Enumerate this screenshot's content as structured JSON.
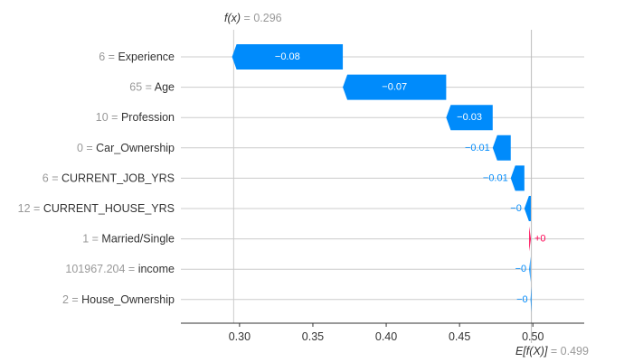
{
  "chart_data": {
    "type": "waterfall",
    "title": "",
    "xlabel": "",
    "ylabel": "",
    "xlim": [
      0.26,
      0.535
    ],
    "x_ticks": [
      0.3,
      0.35,
      0.4,
      0.45,
      0.5
    ],
    "x_tick_labels": [
      "0.30",
      "0.35",
      "0.40",
      "0.45",
      "0.50"
    ],
    "fx": {
      "label": "f(x)",
      "value": "0.296",
      "x": 0.296
    },
    "base": {
      "label": "E[f(X)]",
      "value": "0.499",
      "x": 0.499
    },
    "features": [
      {
        "value": "6",
        "name": "Experience",
        "shap": -0.0755,
        "label": "−0.08"
      },
      {
        "value": "65",
        "name": "Age",
        "shap": -0.0705,
        "label": "−0.07"
      },
      {
        "value": "10",
        "name": "Profession",
        "shap": -0.0317,
        "label": "−0.03"
      },
      {
        "value": "0",
        "name": "Car_Ownership",
        "shap": -0.0123,
        "label": "−0.01"
      },
      {
        "value": "6",
        "name": "CURRENT_JOB_YRS",
        "shap": -0.0093,
        "label": "−0.01"
      },
      {
        "value": "12",
        "name": "CURRENT_HOUSE_YRS",
        "shap": -0.0044,
        "label": "−0"
      },
      {
        "value": "1",
        "name": "Married/Single",
        "shap": 0.0011,
        "label": "+0"
      },
      {
        "value": "101967.204",
        "name": "income",
        "shap": -0.0009,
        "label": "−0"
      },
      {
        "value": "2",
        "name": "House_Ownership",
        "shap": -0.0006,
        "label": "−0"
      }
    ],
    "colors": {
      "negative": "#008bfb",
      "positive": "#ff0051",
      "grid": "#cccccc",
      "axis": "#333333",
      "muted": "#999999"
    }
  }
}
